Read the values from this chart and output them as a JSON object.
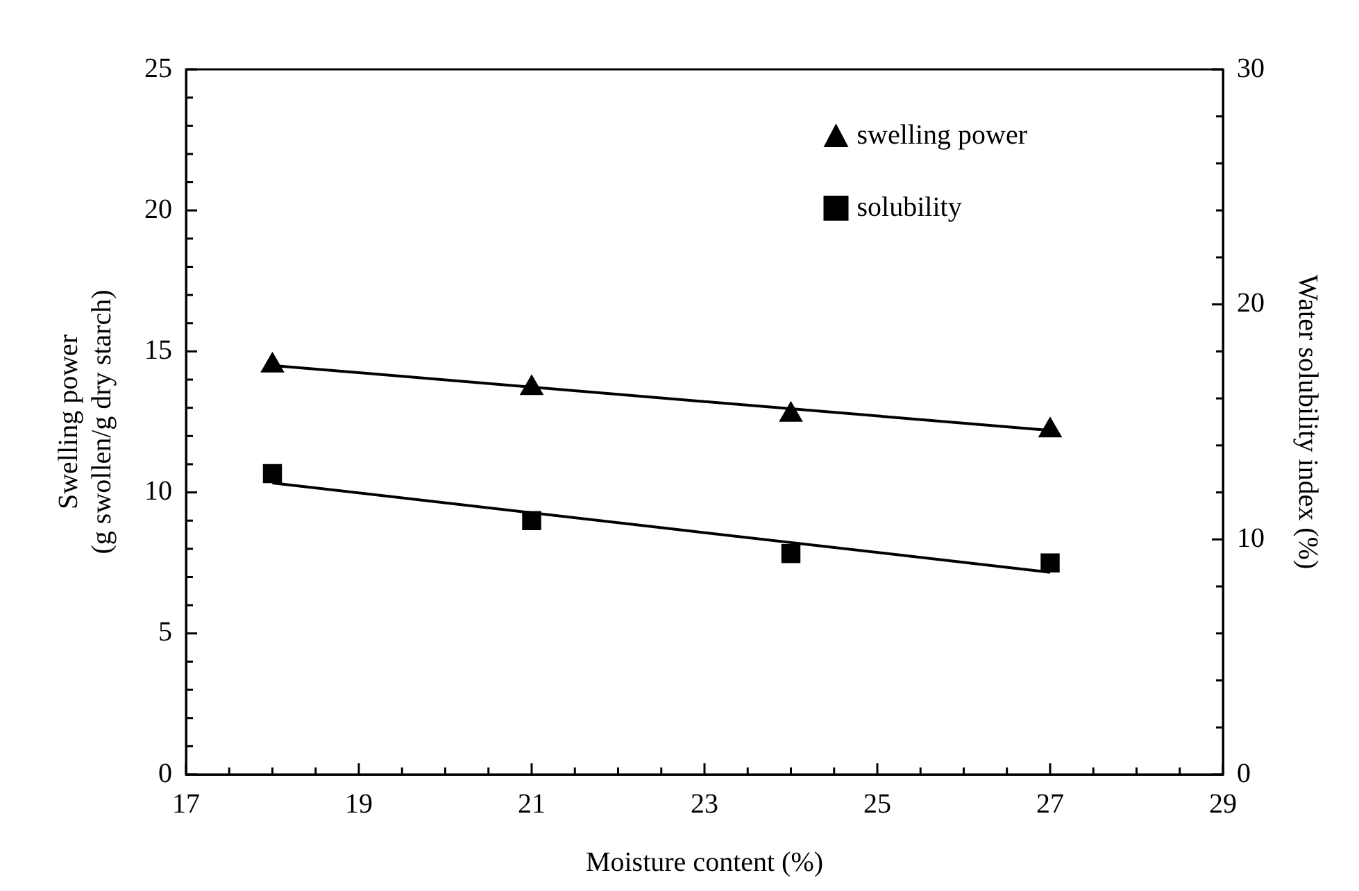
{
  "chart_data": {
    "type": "scatter",
    "xlabel": "Moisture content (%)",
    "ylabel": "Swelling power\n(g swollen/g dry starch)",
    "y2label": "Water solubility index (%)",
    "xlim": [
      17,
      29
    ],
    "xticks": [
      17,
      {
        "value": 17.5,
        "label": null
      },
      {
        "value": 18,
        "label": null
      },
      {
        "value": 18.5,
        "label": null
      },
      19,
      {
        "value": 19.5,
        "label": null
      },
      {
        "value": 20,
        "label": null
      },
      {
        "value": 20.5,
        "label": null
      },
      21,
      {
        "value": 21.5,
        "label": null
      },
      {
        "value": 22,
        "label": null
      },
      {
        "value": 22.5,
        "label": null
      },
      23,
      {
        "value": 23.5,
        "label": null
      },
      {
        "value": 24,
        "label": null
      },
      {
        "value": 24.5,
        "label": null
      },
      25,
      {
        "value": 25.5,
        "label": null
      },
      {
        "value": 26,
        "label": null
      },
      {
        "value": 26.5,
        "label": null
      },
      27,
      {
        "value": 27.5,
        "label": null
      },
      {
        "value": 28,
        "label": null
      },
      {
        "value": 28.5,
        "label": null
      },
      29
    ],
    "ylim": [
      0,
      25
    ],
    "yticks": [
      0,
      {
        "value": 1,
        "label": null
      },
      {
        "value": 2,
        "label": null
      },
      {
        "value": 3,
        "label": null
      },
      {
        "value": 4,
        "label": null
      },
      5,
      {
        "value": 6,
        "label": null
      },
      {
        "value": 7,
        "label": null
      },
      {
        "value": 8,
        "label": null
      },
      {
        "value": 9,
        "label": null
      },
      10,
      {
        "value": 11,
        "label": null
      },
      {
        "value": 12,
        "label": null
      },
      {
        "value": 13,
        "label": null
      },
      {
        "value": 14,
        "label": null
      },
      15,
      {
        "value": 16,
        "label": null
      },
      {
        "value": 17,
        "label": null
      },
      {
        "value": 18,
        "label": null
      },
      {
        "value": 19,
        "label": null
      },
      20,
      {
        "value": 21,
        "label": null
      },
      {
        "value": 22,
        "label": null
      },
      {
        "value": 23,
        "label": null
      },
      {
        "value": 24,
        "label": null
      },
      25
    ],
    "y2lim": [
      0,
      30
    ],
    "y2ticks": [
      0,
      {
        "value": 2,
        "label": null
      },
      {
        "value": 4,
        "label": null
      },
      {
        "value": 6,
        "label": null
      },
      {
        "value": 8,
        "label": null
      },
      10,
      {
        "value": 12,
        "label": null
      },
      {
        "value": 14,
        "label": null
      },
      {
        "value": 16,
        "label": null
      },
      {
        "value": 18,
        "label": null
      },
      20,
      {
        "value": 22,
        "label": null
      },
      {
        "value": 24,
        "label": null
      },
      {
        "value": 26,
        "label": null
      },
      {
        "value": 28,
        "label": null
      },
      30
    ],
    "grid": false,
    "legend": "top right",
    "series": [
      {
        "name": "swelling power",
        "marker": "triangle",
        "color": "#000000",
        "x": [
          18,
          21,
          24,
          27
        ],
        "values": [
          14.5,
          13.7,
          12.75,
          12.2
        ]
      },
      {
        "name": "solubility",
        "marker": "square",
        "axis": "y2",
        "color": "#000000",
        "x": [
          18,
          21,
          24,
          27
        ],
        "values": [
          12.8,
          10.8,
          9.4,
          9.0
        ]
      },
      {
        "type": "line",
        "marker": "none",
        "color": "#000000",
        "x": [
          18,
          27
        ],
        "values": [
          14.5,
          12.2
        ]
      },
      {
        "type": "line",
        "marker": "none",
        "axis": "y2",
        "color": "#000000",
        "x": [
          18,
          27
        ],
        "values": [
          12.4,
          8.6
        ]
      }
    ]
  }
}
